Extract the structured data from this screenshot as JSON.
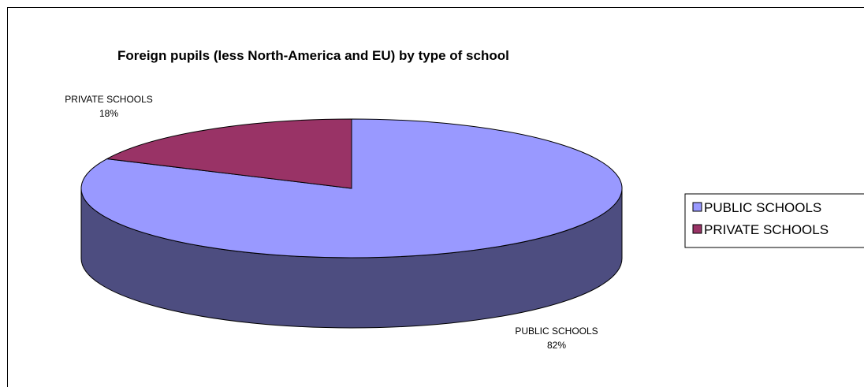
{
  "chart_data": {
    "type": "pie",
    "title": "Foreign pupils (less North-America and EU) by  type of school",
    "slices": [
      {
        "name": "PUBLIC SCHOOLS",
        "value": 82,
        "label": "82%",
        "color": "#9999FF",
        "side_color": "#4D4D80"
      },
      {
        "name": "PRIVATE SCHOOLS",
        "value": 18,
        "label": "18%",
        "color": "#993366",
        "side_color": "#4D1A33"
      }
    ],
    "legend": {
      "position": "right",
      "entries": [
        "PUBLIC SCHOOLS",
        "PRIVATE SCHOOLS"
      ]
    },
    "style": "3d"
  }
}
